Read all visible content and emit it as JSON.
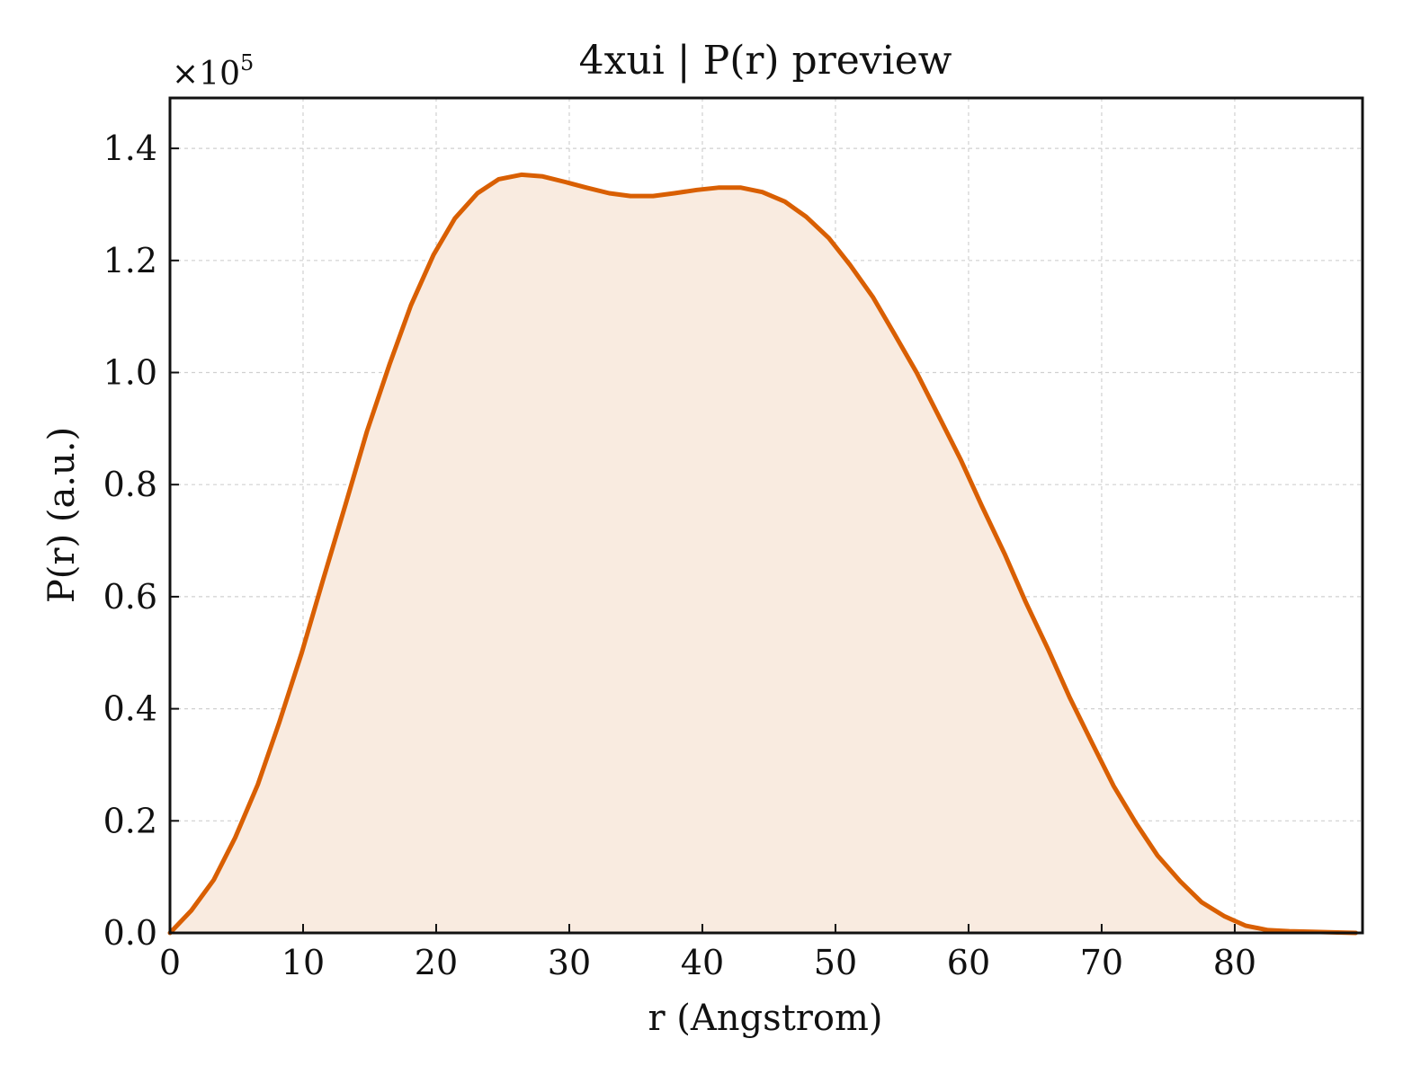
{
  "chart_data": {
    "type": "area",
    "title": "4xui | P(r) preview",
    "xlabel": "r (Angstrom)",
    "ylabel": "P(r) (a.u.)",
    "y_multiplier": "×10",
    "y_multiplier_exp": "5",
    "xlim": [
      0,
      89.6
    ],
    "ylim": [
      0,
      1.49
    ],
    "xticks": [
      0,
      10,
      20,
      30,
      40,
      50,
      60,
      70,
      80
    ],
    "xtick_labels": [
      "0",
      "10",
      "20",
      "30",
      "40",
      "50",
      "60",
      "70",
      "80"
    ],
    "yticks": [
      0,
      0.2,
      0.4,
      0.6,
      0.8,
      1.0,
      1.2,
      1.4
    ],
    "ytick_labels": [
      "0.0",
      "0.2",
      "0.4",
      "0.6",
      "0.8",
      "1.0",
      "1.2",
      "1.4"
    ],
    "grid": true,
    "line_color": "#d95f02",
    "fill_color": "#f9ebe0",
    "series": [
      {
        "x": [
          0,
          1.6,
          3.3,
          4.9,
          6.6,
          8.2,
          9.9,
          11.5,
          13.2,
          14.8,
          16.5,
          18.1,
          19.8,
          21.4,
          23.1,
          24.7,
          26.4,
          28.0,
          29.7,
          31.3,
          33.0,
          34.6,
          36.3,
          37.9,
          39.6,
          41.2,
          42.9,
          44.5,
          46.2,
          47.8,
          49.5,
          51.1,
          52.8,
          54.4,
          56.1,
          57.7,
          59.4,
          61.0,
          62.7,
          64.3,
          66.0,
          67.6,
          69.3,
          70.9,
          72.6,
          74.2,
          75.9,
          77.5,
          79.2,
          80.8,
          82.5,
          84.1,
          85.8,
          87.4,
          89.1
        ],
        "y": [
          0.0,
          0.04,
          0.095,
          0.17,
          0.265,
          0.375,
          0.5,
          0.63,
          0.765,
          0.895,
          1.015,
          1.12,
          1.21,
          1.275,
          1.32,
          1.345,
          1.353,
          1.35,
          1.34,
          1.33,
          1.32,
          1.315,
          1.315,
          1.32,
          1.326,
          1.33,
          1.33,
          1.322,
          1.305,
          1.278,
          1.24,
          1.192,
          1.135,
          1.07,
          1.0,
          0.925,
          0.845,
          0.762,
          0.677,
          0.59,
          0.505,
          0.42,
          0.338,
          0.262,
          0.195,
          0.138,
          0.092,
          0.055,
          0.03,
          0.013,
          0.005,
          0.003,
          0.002,
          0.001,
          0.0
        ]
      }
    ]
  }
}
